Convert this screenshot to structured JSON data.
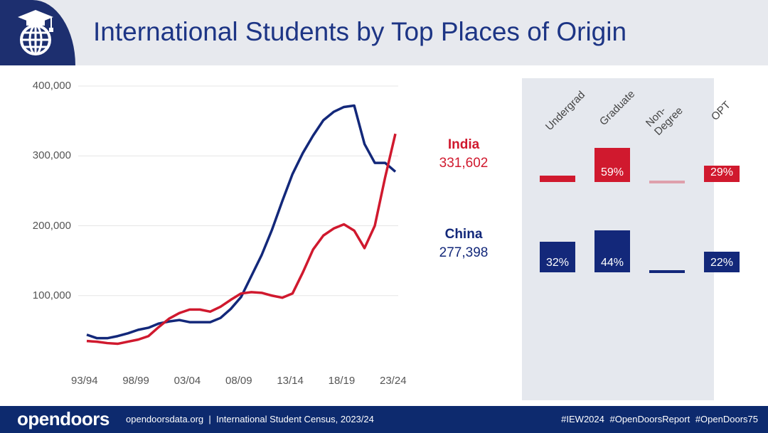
{
  "header": {
    "title": "International Students by Top Places of Origin",
    "logo_icon": "graduation-cap-globe-icon"
  },
  "chart_data": {
    "type": "line",
    "x": [
      "93/94",
      "94/95",
      "95/96",
      "96/97",
      "97/98",
      "98/99",
      "99/00",
      "00/01",
      "01/02",
      "02/03",
      "03/04",
      "04/05",
      "05/06",
      "06/07",
      "07/08",
      "08/09",
      "09/10",
      "10/11",
      "11/12",
      "12/13",
      "13/14",
      "14/15",
      "15/16",
      "16/17",
      "17/18",
      "18/19",
      "19/20",
      "20/21",
      "21/22",
      "22/23",
      "23/24"
    ],
    "xticks": [
      "93/94",
      "98/99",
      "03/04",
      "08/09",
      "13/14",
      "18/19",
      "23/24"
    ],
    "yticks": [
      "100,000",
      "200,000",
      "300,000",
      "400,000"
    ],
    "ytick_values": [
      100000,
      200000,
      300000,
      400000
    ],
    "ylim": [
      0,
      400000
    ],
    "grid": true,
    "series": [
      {
        "name": "India",
        "color": "#d0192e",
        "values": [
          35000,
          34000,
          32000,
          31000,
          34000,
          37000,
          42000,
          55000,
          67000,
          75000,
          80000,
          80000,
          77000,
          84000,
          94000,
          103000,
          105000,
          104000,
          100000,
          97000,
          103000,
          133000,
          166000,
          186000,
          196000,
          202000,
          193000,
          168000,
          200000,
          269000,
          331602
        ]
      },
      {
        "name": "China",
        "color": "#13287a",
        "values": [
          44000,
          39000,
          39000,
          42000,
          46000,
          51000,
          54000,
          60000,
          63000,
          65000,
          62000,
          62000,
          62000,
          68000,
          81000,
          98000,
          128000,
          158000,
          194000,
          235000,
          274000,
          304000,
          329000,
          351000,
          363000,
          370000,
          372000,
          317000,
          290000,
          290000,
          277398
        ]
      }
    ]
  },
  "countries": [
    {
      "name": "India",
      "total": "331,602",
      "color": "#d0192e"
    },
    {
      "name": "China",
      "total": "277,398",
      "color": "#13287a"
    }
  ],
  "breakdown": {
    "categories": [
      "Undergrad",
      "Graduate",
      "Non-Degree",
      "OPT"
    ],
    "rows": [
      {
        "country": "India",
        "values": [
          11,
          59,
          1,
          29
        ],
        "labels": [
          "",
          "59%",
          "",
          "29%"
        ]
      },
      {
        "country": "China",
        "values": [
          32,
          44,
          2,
          22
        ],
        "labels": [
          "32%",
          "44%",
          "",
          "22%"
        ]
      }
    ]
  },
  "footer": {
    "brand": "opendoors",
    "text": "opendoorsdata.org  |  International Student Census, 2023/24",
    "tags": "#IEW2024 #OpenDoorsReport #OpenDoors75"
  }
}
